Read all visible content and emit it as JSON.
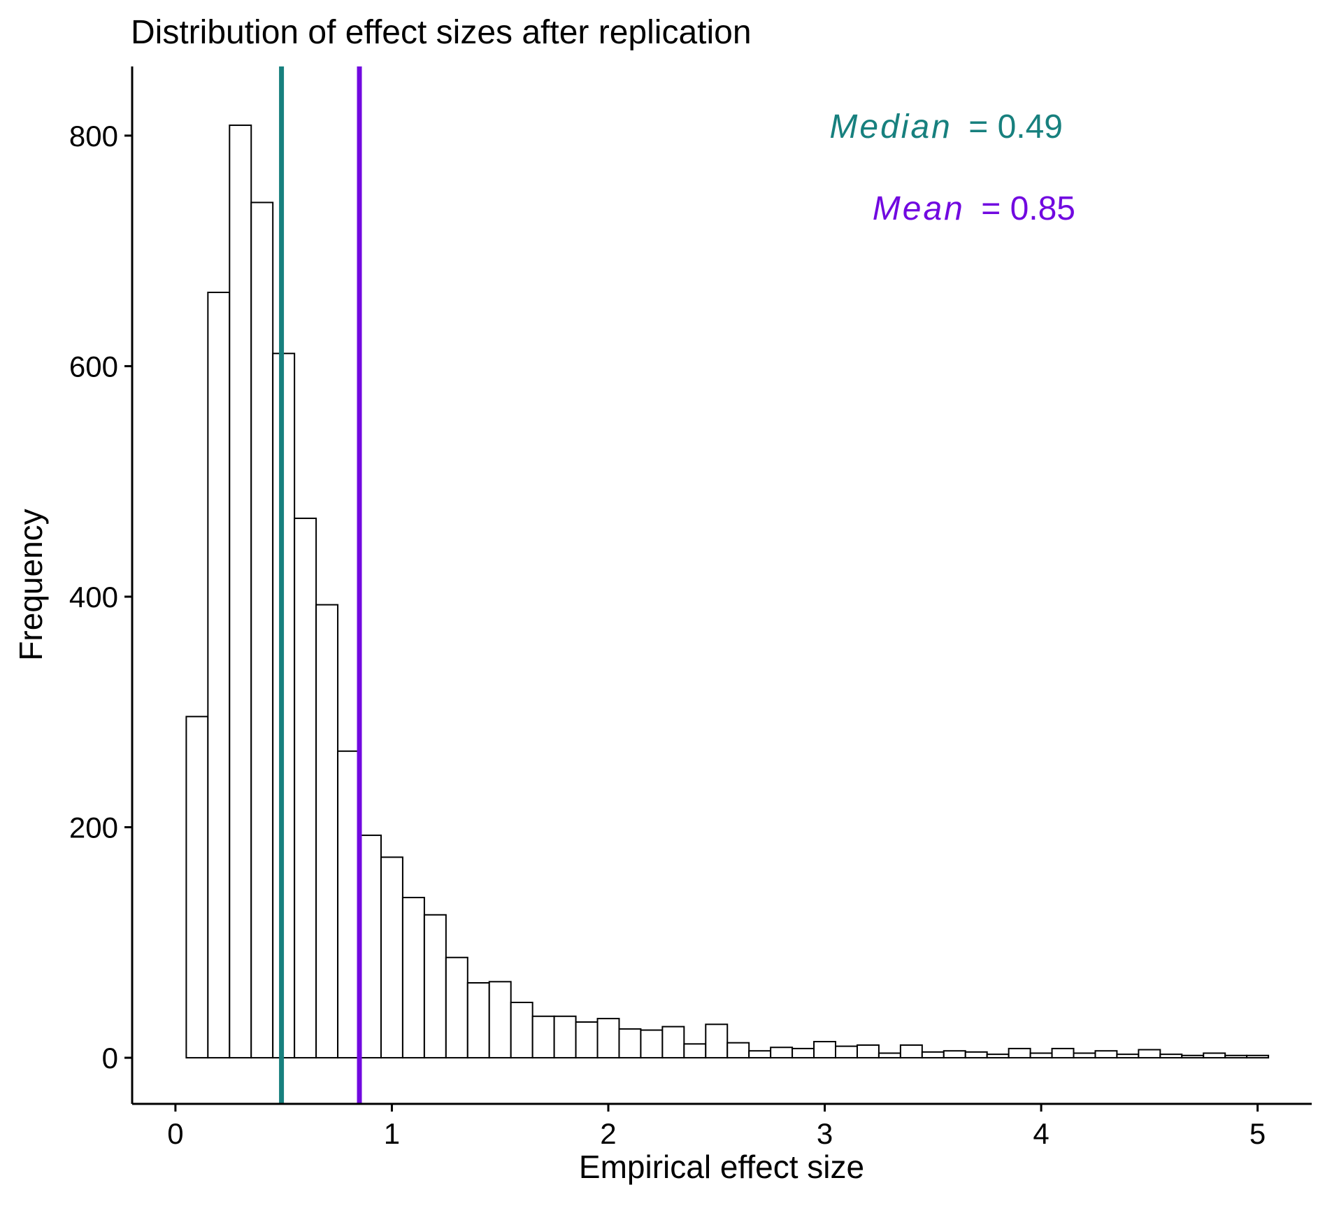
{
  "chart_data": {
    "type": "bar",
    "title": "Distribution of effect sizes after replication",
    "xlabel": "Empirical effect size",
    "ylabel": "Frequency",
    "xlim": [
      -0.2,
      5.25
    ],
    "ylim": [
      -40,
      860
    ],
    "x_ticks": [
      0,
      1,
      2,
      3,
      4,
      5
    ],
    "y_ticks": [
      0,
      200,
      400,
      600,
      800
    ],
    "bin_width": 0.1,
    "bins_start": [
      0.05,
      0.15,
      0.25,
      0.35,
      0.45,
      0.55,
      0.65,
      0.75,
      0.85,
      0.95,
      1.05,
      1.15,
      1.25,
      1.35,
      1.45,
      1.55,
      1.65,
      1.75,
      1.85,
      1.95,
      2.05,
      2.15,
      2.25,
      2.35,
      2.45,
      2.55,
      2.65,
      2.75,
      2.85,
      2.95,
      3.05,
      3.15,
      3.25,
      3.35,
      3.45,
      3.55,
      3.65,
      3.75,
      3.85,
      3.95,
      4.05,
      4.15,
      4.25,
      4.35,
      4.45,
      4.55,
      4.65,
      4.75,
      4.85,
      4.95
    ],
    "values": [
      296,
      664,
      809,
      742,
      611,
      468,
      393,
      266,
      193,
      174,
      139,
      124,
      87,
      65,
      66,
      48,
      36,
      36,
      31,
      34,
      25,
      24,
      27,
      12,
      29,
      13,
      6,
      9,
      8,
      14,
      10,
      11,
      4,
      11,
      5,
      6,
      5,
      3,
      8,
      4,
      8,
      4,
      6,
      3,
      7,
      3,
      2,
      4,
      2,
      2
    ],
    "grid": false,
    "reference_lines": [
      {
        "label_name": "Median",
        "label_value": "= 0.49",
        "x": 0.49,
        "color": "#17807e"
      },
      {
        "label_name": "Mean",
        "label_value": "= 0.85",
        "x": 0.85,
        "color": "#7109e0"
      }
    ]
  }
}
